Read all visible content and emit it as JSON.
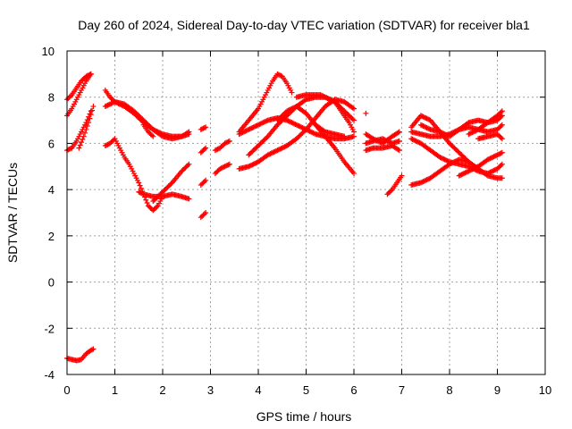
{
  "chart_data": {
    "type": "scatter",
    "title": "Day 260 of 2024, Sidereal Day-to-day VTEC variation (SDTVAR) for receiver bla1",
    "xlabel": "GPS time / hours",
    "ylabel": "SDTVAR / TECUs",
    "xlim": [
      0,
      10
    ],
    "ylim": [
      -4,
      10
    ],
    "xticks": [
      0,
      1,
      2,
      3,
      4,
      5,
      6,
      7,
      8,
      9,
      10
    ],
    "yticks": [
      -4,
      -2,
      0,
      2,
      4,
      6,
      8,
      10
    ],
    "grid": true,
    "marker": "+",
    "color": "#ff0000",
    "series": [
      {
        "name": "s1",
        "x": [
          0.0,
          0.1,
          0.2,
          0.3,
          0.4,
          0.5
        ],
        "y": [
          7.9,
          8.1,
          8.4,
          8.7,
          8.9,
          9.0
        ]
      },
      {
        "name": "s2",
        "x": [
          0.0,
          0.1,
          0.2,
          0.3,
          0.4,
          0.5
        ],
        "y": [
          7.2,
          7.5,
          7.9,
          8.3,
          8.7,
          9.0
        ]
      },
      {
        "name": "s3",
        "x": [
          0.0,
          0.1,
          0.2,
          0.3,
          0.4,
          0.5
        ],
        "y": [
          5.7,
          5.8,
          6.1,
          6.5,
          6.9,
          7.4
        ]
      },
      {
        "name": "s4",
        "x": [
          0.25,
          0.35,
          0.45,
          0.55
        ],
        "y": [
          5.8,
          6.3,
          6.9,
          7.6
        ]
      },
      {
        "name": "s5",
        "x": [
          0.0,
          0.1,
          0.2,
          0.3,
          0.4,
          0.5,
          0.55
        ],
        "y": [
          -3.3,
          -3.35,
          -3.4,
          -3.35,
          -3.1,
          -2.95,
          -2.9
        ]
      },
      {
        "name": "s6",
        "x": [
          0.8,
          0.9,
          1.0,
          1.1,
          1.2,
          1.4,
          1.6,
          1.8,
          2.0,
          2.2,
          2.4,
          2.55
        ],
        "y": [
          8.3,
          8.0,
          7.8,
          7.7,
          7.6,
          7.3,
          6.9,
          6.6,
          6.4,
          6.3,
          6.3,
          6.4
        ]
      },
      {
        "name": "s7",
        "x": [
          0.8,
          1.0,
          1.2,
          1.4,
          1.6,
          1.8,
          2.0,
          2.2,
          2.4,
          2.55
        ],
        "y": [
          7.6,
          7.8,
          7.7,
          7.4,
          7.0,
          6.6,
          6.3,
          6.2,
          6.3,
          6.5
        ]
      },
      {
        "name": "s8",
        "x": [
          0.8,
          0.9,
          1.0,
          1.1,
          1.2,
          1.3,
          1.4,
          1.5,
          1.6,
          1.7,
          1.8,
          1.9,
          2.0
        ],
        "y": [
          5.9,
          6.0,
          6.2,
          5.8,
          5.4,
          5.1,
          4.7,
          4.3,
          3.8,
          3.3,
          3.1,
          3.3,
          3.7
        ]
      },
      {
        "name": "s9",
        "x": [
          1.5,
          1.6,
          1.8,
          2.0,
          2.2,
          2.4,
          2.55
        ],
        "y": [
          3.9,
          3.8,
          3.7,
          3.7,
          3.8,
          3.7,
          3.6
        ]
      },
      {
        "name": "s10",
        "x": [
          1.8,
          2.0,
          2.2,
          2.4,
          2.55
        ],
        "y": [
          3.5,
          3.9,
          4.3,
          4.8,
          5.1
        ]
      },
      {
        "name": "s11",
        "x": [
          1.6,
          1.7,
          1.8
        ],
        "y": [
          6.8,
          6.5,
          6.3
        ]
      },
      {
        "name": "s12",
        "x": [
          2.8,
          2.85,
          2.9
        ],
        "y": [
          2.8,
          2.9,
          3.0
        ]
      },
      {
        "name": "s13",
        "x": [
          2.8,
          2.9
        ],
        "y": [
          4.2,
          4.4
        ]
      },
      {
        "name": "s14",
        "x": [
          2.8,
          2.9
        ],
        "y": [
          5.6,
          5.8
        ]
      },
      {
        "name": "s15",
        "x": [
          2.8,
          2.9
        ],
        "y": [
          6.6,
          6.7
        ]
      },
      {
        "name": "s16",
        "x": [
          3.1,
          3.2,
          3.3,
          3.4
        ],
        "y": [
          5.7,
          5.8,
          6.0,
          6.1
        ]
      },
      {
        "name": "s17",
        "x": [
          3.1,
          3.2,
          3.3,
          3.4
        ],
        "y": [
          4.7,
          4.9,
          5.0,
          5.1
        ]
      },
      {
        "name": "s18",
        "x": [
          3.6,
          3.8,
          4.0,
          4.1,
          4.2,
          4.3,
          4.4,
          4.5,
          4.6,
          4.7
        ],
        "y": [
          6.5,
          7.0,
          7.5,
          7.9,
          8.3,
          8.7,
          9.0,
          8.9,
          8.6,
          8.2
        ]
      },
      {
        "name": "s19",
        "x": [
          3.6,
          3.8,
          4.0,
          4.2,
          4.4,
          4.6,
          4.8,
          5.0,
          5.2,
          5.4,
          5.6,
          5.8,
          6.0
        ],
        "y": [
          6.4,
          6.6,
          6.8,
          7.0,
          7.1,
          7.0,
          6.8,
          6.6,
          6.4,
          6.3,
          6.2,
          6.2,
          6.3
        ]
      },
      {
        "name": "s20",
        "x": [
          3.6,
          3.8,
          4.0,
          4.2,
          4.4,
          4.6,
          4.8,
          5.0,
          5.2,
          5.4,
          5.6,
          5.8,
          6.0
        ],
        "y": [
          4.9,
          5.0,
          5.2,
          5.5,
          5.7,
          5.9,
          6.2,
          6.6,
          7.1,
          7.6,
          7.9,
          7.8,
          7.5
        ]
      },
      {
        "name": "s21",
        "x": [
          3.8,
          4.0,
          4.2,
          4.4,
          4.6,
          4.8,
          5.0,
          5.2,
          5.4,
          5.6,
          5.8,
          6.0
        ],
        "y": [
          5.5,
          5.9,
          6.3,
          6.8,
          7.2,
          7.6,
          7.9,
          8.0,
          8.0,
          7.8,
          7.4,
          7.0
        ]
      },
      {
        "name": "s22",
        "x": [
          4.8,
          5.0,
          5.1,
          5.2,
          5.3,
          5.4,
          5.5,
          5.6,
          5.7,
          5.8,
          5.9,
          6.0
        ],
        "y": [
          8.0,
          8.1,
          8.1,
          8.1,
          8.1,
          8.0,
          7.9,
          7.8,
          7.5,
          7.2,
          6.9,
          6.5
        ]
      },
      {
        "name": "s23",
        "x": [
          4.4,
          4.6,
          4.8,
          5.0,
          5.2,
          5.4,
          5.6,
          5.8
        ],
        "y": [
          7.0,
          7.4,
          7.6,
          7.3,
          6.8,
          6.5,
          6.4,
          6.3
        ]
      },
      {
        "name": "s24",
        "x": [
          5.2,
          5.4,
          5.6,
          5.8,
          6.0
        ],
        "y": [
          6.8,
          6.3,
          5.8,
          5.2,
          4.7
        ]
      },
      {
        "name": "s25",
        "x": [
          6.25
        ],
        "y": [
          7.3
        ]
      },
      {
        "name": "s26",
        "x": [
          6.25,
          6.4,
          6.6,
          6.8,
          6.95
        ],
        "y": [
          6.0,
          6.1,
          6.2,
          6.0,
          6.1
        ]
      },
      {
        "name": "s27",
        "x": [
          6.25,
          6.4,
          6.6,
          6.8,
          6.95
        ],
        "y": [
          5.7,
          5.8,
          5.8,
          5.9,
          5.7
        ]
      },
      {
        "name": "s28",
        "x": [
          6.25,
          6.4,
          6.6,
          6.8,
          6.95
        ],
        "y": [
          6.4,
          6.2,
          6.0,
          6.3,
          6.5
        ]
      },
      {
        "name": "s29",
        "x": [
          6.7,
          6.8,
          6.9,
          7.0
        ],
        "y": [
          3.8,
          4.0,
          4.3,
          4.6
        ]
      },
      {
        "name": "s30",
        "x": [
          7.2,
          7.4,
          7.6,
          7.8,
          8.0,
          8.2,
          8.4,
          8.6,
          8.8,
          9.0,
          9.1
        ],
        "y": [
          6.7,
          7.2,
          7.0,
          6.5,
          6.0,
          5.6,
          5.2,
          4.9,
          4.6,
          4.5,
          4.5
        ]
      },
      {
        "name": "s31",
        "x": [
          7.2,
          7.4,
          7.6,
          7.8,
          8.0,
          8.2,
          8.4,
          8.6,
          8.8,
          9.0,
          9.1
        ],
        "y": [
          6.2,
          6.0,
          5.7,
          5.4,
          5.2,
          5.1,
          5.0,
          4.8,
          4.7,
          4.9,
          5.1
        ]
      },
      {
        "name": "s32",
        "x": [
          7.2,
          7.4,
          7.6,
          7.8,
          8.0,
          8.2,
          8.4
        ],
        "y": [
          4.2,
          4.3,
          4.5,
          4.8,
          5.1,
          5.3,
          5.2
        ]
      },
      {
        "name": "s33",
        "x": [
          7.2,
          7.4,
          7.6,
          7.8,
          8.0,
          8.2,
          8.4,
          8.6,
          8.8,
          9.0,
          9.1
        ],
        "y": [
          6.5,
          6.4,
          6.3,
          6.3,
          6.4,
          6.6,
          6.7,
          6.6,
          6.5,
          6.6,
          6.8
        ]
      },
      {
        "name": "s34",
        "x": [
          7.4,
          7.6,
          7.8,
          8.0,
          8.2,
          8.4,
          8.6,
          8.8,
          9.0,
          9.1
        ],
        "y": [
          6.8,
          6.6,
          6.5,
          6.3,
          6.6,
          6.9,
          7.0,
          6.9,
          7.0,
          7.2
        ]
      },
      {
        "name": "s35",
        "x": [
          8.2,
          8.4,
          8.6,
          8.8,
          9.0,
          9.1
        ],
        "y": [
          4.6,
          4.8,
          5.0,
          5.3,
          5.5,
          5.6
        ]
      },
      {
        "name": "s36",
        "x": [
          8.4,
          8.6,
          8.8,
          9.0,
          9.1
        ],
        "y": [
          6.4,
          6.6,
          6.9,
          7.2,
          7.4
        ]
      },
      {
        "name": "s37",
        "x": [
          8.6,
          8.8,
          9.0,
          9.1
        ],
        "y": [
          6.2,
          6.3,
          6.4,
          6.2
        ]
      }
    ]
  }
}
